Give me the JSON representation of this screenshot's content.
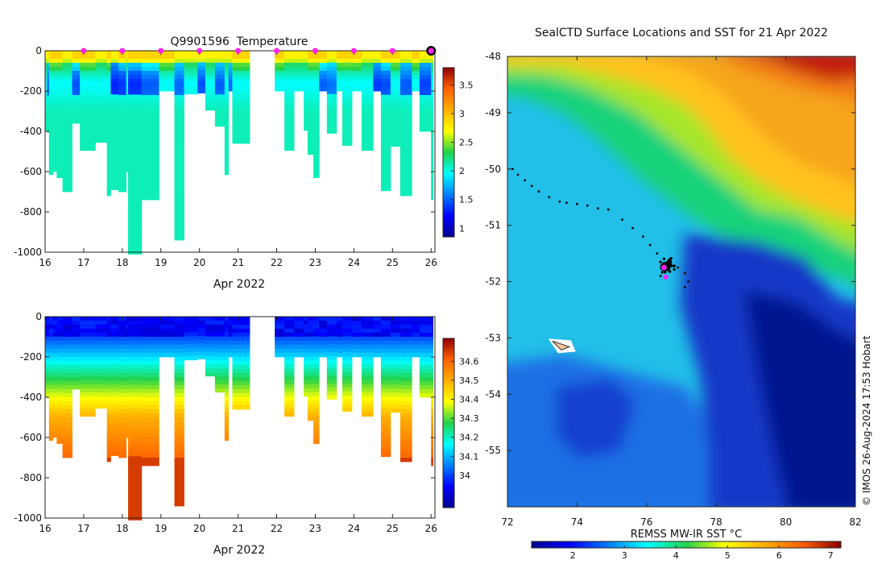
{
  "chart_data": [
    {
      "type": "heatmap",
      "id": "temperature",
      "title": "Q9901596  Temperature",
      "xlabel": "Apr 2022",
      "xlim": [
        16,
        26.1
      ],
      "ylim": [
        -1000,
        0
      ],
      "x_ticks": [
        "16",
        "17",
        "18",
        "19",
        "20",
        "21",
        "22",
        "23",
        "24",
        "25",
        "26"
      ],
      "y_ticks": [
        "0",
        "-200",
        "-400",
        "-600",
        "-800",
        "-1000"
      ],
      "colorbar": {
        "range": [
          0.85,
          3.8
        ],
        "ticks": [
          "1",
          "1.5",
          "2",
          "2.5",
          "3",
          "3.5"
        ]
      },
      "surface_markers_days": [
        17,
        18,
        19,
        20,
        21,
        22,
        23,
        24,
        25
      ],
      "last_marker_day": 26,
      "gap": [
        21.3,
        21.95
      ],
      "profiles": [
        {
          "x0": 16.0,
          "x1": 16.05,
          "d": 395
        },
        {
          "x0": 16.05,
          "x1": 16.1,
          "d": 405
        },
        {
          "x0": 16.1,
          "x1": 16.2,
          "d": 615
        },
        {
          "x0": 16.2,
          "x1": 16.3,
          "d": 600
        },
        {
          "x0": 16.3,
          "x1": 16.45,
          "d": 630
        },
        {
          "x0": 16.45,
          "x1": 16.7,
          "d": 700
        },
        {
          "x0": 16.7,
          "x1": 16.9,
          "d": 360
        },
        {
          "x0": 16.9,
          "x1": 17.3,
          "d": 495
        },
        {
          "x0": 17.3,
          "x1": 17.6,
          "d": 455
        },
        {
          "x0": 17.6,
          "x1": 17.7,
          "d": 720
        },
        {
          "x0": 17.7,
          "x1": 17.9,
          "d": 690
        },
        {
          "x0": 17.9,
          "x1": 18.1,
          "d": 700
        },
        {
          "x0": 18.1,
          "x1": 18.15,
          "d": 600
        },
        {
          "x0": 18.15,
          "x1": 18.5,
          "d": 1010
        },
        {
          "x0": 18.5,
          "x1": 18.95,
          "d": 740
        },
        {
          "x0": 18.95,
          "x1": 19.35,
          "d": 200
        },
        {
          "x0": 19.35,
          "x1": 19.6,
          "d": 940
        },
        {
          "x0": 19.6,
          "x1": 19.95,
          "d": 215
        },
        {
          "x0": 19.95,
          "x1": 20.15,
          "d": 210
        },
        {
          "x0": 20.15,
          "x1": 20.4,
          "d": 295
        },
        {
          "x0": 20.4,
          "x1": 20.65,
          "d": 375
        },
        {
          "x0": 20.65,
          "x1": 20.75,
          "d": 615
        },
        {
          "x0": 20.75,
          "x1": 20.85,
          "d": 200
        },
        {
          "x0": 20.85,
          "x1": 21.3,
          "d": 460
        },
        {
          "x0": 21.95,
          "x1": 22.2,
          "d": 200
        },
        {
          "x0": 22.2,
          "x1": 22.45,
          "d": 495
        },
        {
          "x0": 22.45,
          "x1": 22.7,
          "d": 200
        },
        {
          "x0": 22.7,
          "x1": 22.8,
          "d": 395
        },
        {
          "x0": 22.8,
          "x1": 22.95,
          "d": 515
        },
        {
          "x0": 22.95,
          "x1": 23.1,
          "d": 630
        },
        {
          "x0": 23.1,
          "x1": 23.3,
          "d": 200
        },
        {
          "x0": 23.3,
          "x1": 23.55,
          "d": 410
        },
        {
          "x0": 23.55,
          "x1": 23.7,
          "d": 200
        },
        {
          "x0": 23.7,
          "x1": 23.95,
          "d": 470
        },
        {
          "x0": 23.95,
          "x1": 24.2,
          "d": 200
        },
        {
          "x0": 24.2,
          "x1": 24.5,
          "d": 495
        },
        {
          "x0": 24.5,
          "x1": 24.7,
          "d": 200
        },
        {
          "x0": 24.7,
          "x1": 24.95,
          "d": 695
        },
        {
          "x0": 24.95,
          "x1": 25.2,
          "d": 475
        },
        {
          "x0": 25.2,
          "x1": 25.5,
          "d": 720
        },
        {
          "x0": 25.5,
          "x1": 25.7,
          "d": 200
        },
        {
          "x0": 25.7,
          "x1": 26.0,
          "d": 400
        },
        {
          "x0": 26.0,
          "x1": 26.05,
          "d": 740
        }
      ]
    },
    {
      "type": "heatmap",
      "id": "salinity",
      "title": "",
      "xlabel": "Apr 2022",
      "xlim": [
        16,
        26.1
      ],
      "ylim": [
        -1000,
        0
      ],
      "x_ticks": [
        "16",
        "17",
        "18",
        "19",
        "20",
        "21",
        "22",
        "23",
        "24",
        "25",
        "26"
      ],
      "y_ticks": [
        "0",
        "-200",
        "-400",
        "-600",
        "-800",
        "-1000"
      ],
      "colorbar": {
        "range": [
          33.83,
          34.72
        ],
        "ticks": [
          "34",
          "34.1",
          "34.2",
          "34.3",
          "34.4",
          "34.5",
          "34.6"
        ]
      },
      "gap": [
        21.3,
        21.95
      ],
      "profiles_ref": "temperature"
    },
    {
      "type": "heatmap",
      "id": "sst_map",
      "title": "SealCTD Surface Locations and SST for 21 Apr 2022",
      "xlabel": "",
      "xlim": [
        72,
        82
      ],
      "ylim": [
        -56,
        -48
      ],
      "x_ticks": [
        "72",
        "74",
        "76",
        "78",
        "80",
        "82"
      ],
      "y_ticks": [
        "-48",
        "-49",
        "-50",
        "-51",
        "-52",
        "-53",
        "-54",
        "-55"
      ],
      "colorbar": {
        "label": "REMSS MW-IR SST °C",
        "range": [
          1.2,
          7.2
        ],
        "ticks": [
          "2",
          "3",
          "4",
          "5",
          "6",
          "7"
        ]
      },
      "track": [
        [
          72.15,
          -50.0
        ],
        [
          72.3,
          -50.1
        ],
        [
          72.5,
          -50.2
        ],
        [
          72.7,
          -50.3
        ],
        [
          72.9,
          -50.4
        ],
        [
          73.2,
          -50.5
        ],
        [
          73.5,
          -50.58
        ],
        [
          73.7,
          -50.6
        ],
        [
          74.0,
          -50.62
        ],
        [
          74.3,
          -50.65
        ],
        [
          74.6,
          -50.7
        ],
        [
          74.9,
          -50.72
        ],
        [
          75.3,
          -50.9
        ],
        [
          75.6,
          -51.05
        ],
        [
          75.9,
          -51.2
        ],
        [
          76.1,
          -51.35
        ],
        [
          76.3,
          -51.5
        ],
        [
          76.4,
          -51.65
        ],
        [
          76.5,
          -51.75
        ],
        [
          76.7,
          -51.7
        ],
        [
          76.9,
          -51.75
        ],
        [
          77.1,
          -51.85
        ],
        [
          77.2,
          -52.0
        ],
        [
          77.1,
          -52.1
        ],
        [
          76.6,
          -51.8
        ],
        [
          76.4,
          -51.9
        ]
      ],
      "cluster_center": [
        76.6,
        -51.72
      ],
      "current_location": [
        76.5,
        -51.75
      ],
      "secondary_location": [
        76.55,
        -51.92
      ],
      "kerguelen_marker": [
        73.5,
        -53.1
      ],
      "copyright": "© IMOS 26-Aug-2024 17:53 Hobart"
    }
  ]
}
